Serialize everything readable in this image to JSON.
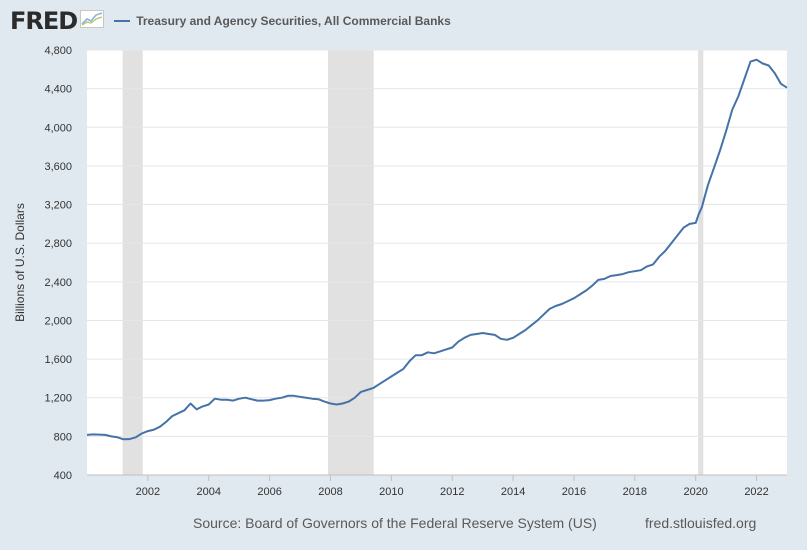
{
  "brand": {
    "logo": "FRED",
    "logo_icon": "chart-line-icon"
  },
  "colors": {
    "background": "#e1e9f0",
    "plot_background": "#ffffff",
    "series": "#4572a7",
    "recession": "#e1e1e1",
    "grid": "#e6e6e6",
    "text": "#333333"
  },
  "footer": {
    "source": "Source: Board of Governors of the Federal Reserve System (US)",
    "url": "fred.stlouisfed.org"
  },
  "chart_data": {
    "type": "line",
    "title": "",
    "xlabel": "",
    "ylabel": "Billions of U.S. Dollars",
    "legend": [
      "Treasury and Agency Securities, All Commercial Banks"
    ],
    "legend_position": "top",
    "xlim": [
      2000.0,
      2023.0
    ],
    "ylim": [
      400,
      4800
    ],
    "x_ticks": [
      {
        "value": 2002,
        "label": "2002"
      },
      {
        "value": 2004,
        "label": "2004"
      },
      {
        "value": 2006,
        "label": "2006"
      },
      {
        "value": 2008,
        "label": "2008"
      },
      {
        "value": 2010,
        "label": "2010"
      },
      {
        "value": 2012,
        "label": "2012"
      },
      {
        "value": 2014,
        "label": "2014"
      },
      {
        "value": 2016,
        "label": "2016"
      },
      {
        "value": 2018,
        "label": "2018"
      },
      {
        "value": 2020,
        "label": "2020"
      },
      {
        "value": 2022,
        "label": "2022"
      }
    ],
    "y_ticks": [
      {
        "value": 400,
        "label": "400"
      },
      {
        "value": 800,
        "label": "800"
      },
      {
        "value": 1200,
        "label": "1,200"
      },
      {
        "value": 1600,
        "label": "1,600"
      },
      {
        "value": 2000,
        "label": "2,000"
      },
      {
        "value": 2400,
        "label": "2,400"
      },
      {
        "value": 2800,
        "label": "2,800"
      },
      {
        "value": 3200,
        "label": "3,200"
      },
      {
        "value": 3600,
        "label": "3,600"
      },
      {
        "value": 4000,
        "label": "4,000"
      },
      {
        "value": 4400,
        "label": "4,400"
      },
      {
        "value": 4800,
        "label": "4,800"
      }
    ],
    "grid": true,
    "recessions": [
      [
        2001.17,
        2001.83
      ],
      [
        2007.92,
        2009.42
      ],
      [
        2020.08,
        2020.25
      ]
    ],
    "series": [
      {
        "name": "Treasury and Agency Securities, All Commercial Banks",
        "x": [
          2000.0,
          2000.2,
          2000.4,
          2000.6,
          2000.8,
          2001.0,
          2001.2,
          2001.4,
          2001.6,
          2001.8,
          2002.0,
          2002.2,
          2002.4,
          2002.6,
          2002.8,
          2003.0,
          2003.2,
          2003.4,
          2003.6,
          2003.8,
          2004.0,
          2004.2,
          2004.4,
          2004.6,
          2004.8,
          2005.0,
          2005.2,
          2005.4,
          2005.6,
          2005.8,
          2006.0,
          2006.2,
          2006.4,
          2006.6,
          2006.8,
          2007.0,
          2007.2,
          2007.4,
          2007.6,
          2007.8,
          2008.0,
          2008.2,
          2008.4,
          2008.6,
          2008.8,
          2009.0,
          2009.2,
          2009.4,
          2009.6,
          2009.8,
          2010.0,
          2010.2,
          2010.4,
          2010.6,
          2010.8,
          2011.0,
          2011.2,
          2011.4,
          2011.6,
          2011.8,
          2012.0,
          2012.2,
          2012.4,
          2012.6,
          2012.8,
          2013.0,
          2013.2,
          2013.4,
          2013.6,
          2013.8,
          2014.0,
          2014.2,
          2014.4,
          2014.6,
          2014.8,
          2015.0,
          2015.2,
          2015.4,
          2015.6,
          2015.8,
          2016.0,
          2016.2,
          2016.4,
          2016.6,
          2016.8,
          2017.0,
          2017.2,
          2017.4,
          2017.6,
          2017.8,
          2018.0,
          2018.2,
          2018.4,
          2018.6,
          2018.8,
          2019.0,
          2019.2,
          2019.4,
          2019.6,
          2019.8,
          2020.0,
          2020.1,
          2020.2,
          2020.4,
          2020.6,
          2020.8,
          2021.0,
          2021.2,
          2021.4,
          2021.6,
          2021.8,
          2022.0,
          2022.2,
          2022.4,
          2022.6,
          2022.8,
          2023.0
        ],
        "values": [
          815,
          820,
          818,
          815,
          800,
          790,
          770,
          772,
          790,
          830,
          855,
          870,
          900,
          950,
          1010,
          1040,
          1070,
          1140,
          1080,
          1110,
          1130,
          1190,
          1180,
          1180,
          1170,
          1190,
          1200,
          1185,
          1170,
          1170,
          1175,
          1190,
          1200,
          1220,
          1220,
          1210,
          1200,
          1190,
          1185,
          1160,
          1140,
          1130,
          1140,
          1160,
          1200,
          1260,
          1280,
          1300,
          1340,
          1380,
          1420,
          1460,
          1500,
          1580,
          1640,
          1640,
          1670,
          1660,
          1680,
          1700,
          1720,
          1780,
          1820,
          1850,
          1860,
          1870,
          1860,
          1850,
          1810,
          1800,
          1820,
          1860,
          1900,
          1950,
          2000,
          2060,
          2120,
          2150,
          2170,
          2200,
          2230,
          2270,
          2310,
          2360,
          2420,
          2430,
          2460,
          2470,
          2480,
          2500,
          2510,
          2520,
          2560,
          2580,
          2660,
          2720,
          2800,
          2880,
          2960,
          3000,
          3010,
          3100,
          3170,
          3400,
          3580,
          3760,
          3960,
          4180,
          4320,
          4500,
          4680,
          4700,
          4660,
          4640,
          4560,
          4450,
          4410
        ]
      }
    ]
  }
}
